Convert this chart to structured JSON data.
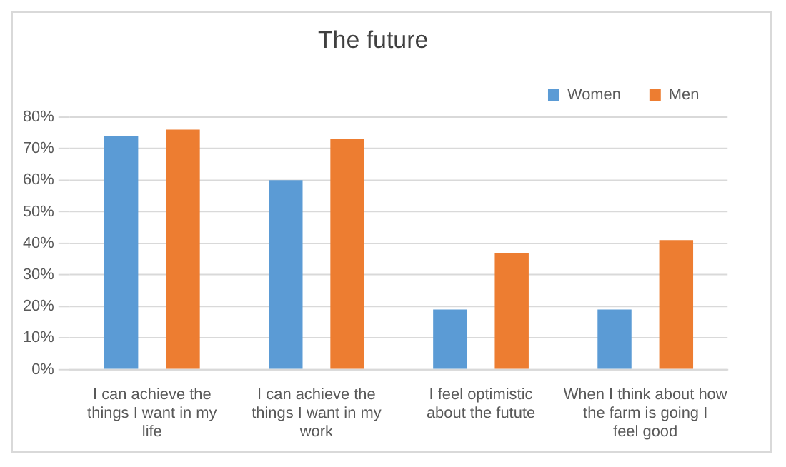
{
  "chart_data": {
    "type": "bar",
    "title": "The future",
    "categories": [
      "I can achieve the things I want in my life",
      "I can achieve the things I want in my work",
      "I feel optimistic about the futute",
      "When I think about how the farm is going I feel good"
    ],
    "series": [
      {
        "name": "Women",
        "color": "#5b9bd5",
        "values": [
          74,
          60,
          19,
          19
        ]
      },
      {
        "name": "Men",
        "color": "#ed7d31",
        "values": [
          76,
          73,
          37,
          41
        ]
      }
    ],
    "ylim": [
      0,
      80
    ],
    "yticks": [
      {
        "value": 0,
        "label": "0%"
      },
      {
        "value": 10,
        "label": "10%"
      },
      {
        "value": 20,
        "label": "20%"
      },
      {
        "value": 30,
        "label": "30%"
      },
      {
        "value": 40,
        "label": "40%"
      },
      {
        "value": 50,
        "label": "50%"
      },
      {
        "value": 60,
        "label": "60%"
      },
      {
        "value": 70,
        "label": "70%"
      },
      {
        "value": 80,
        "label": "80%"
      }
    ],
    "grid": "y",
    "legend": "top right"
  }
}
